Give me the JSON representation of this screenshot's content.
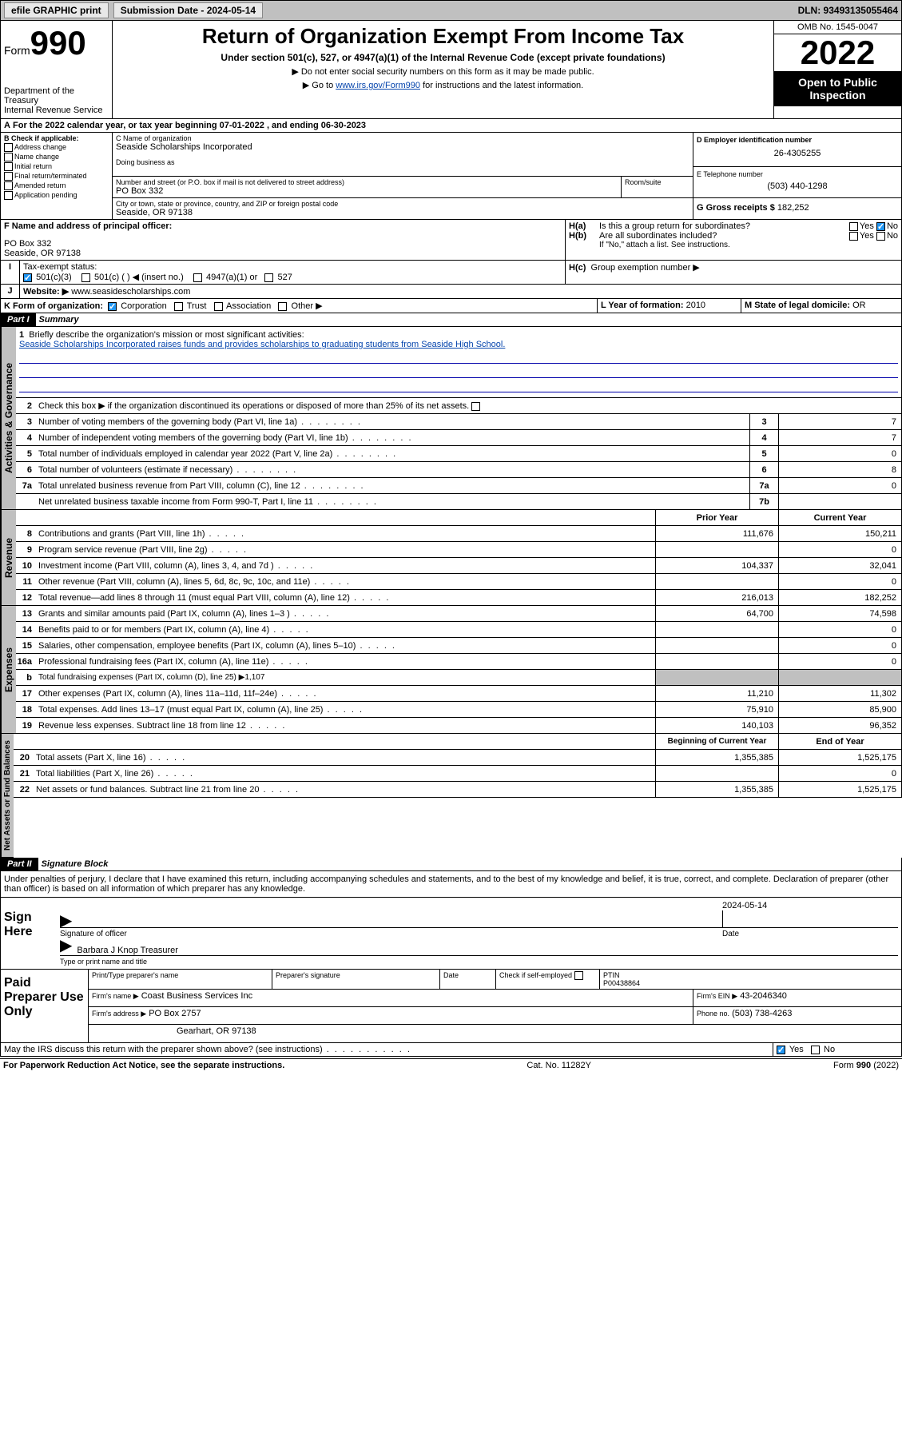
{
  "topbar": {
    "efile": "efile GRAPHIC print",
    "sub_label": "Submission Date - 2024-05-14",
    "dln": "DLN: 93493135055464"
  },
  "header": {
    "form_word": "Form",
    "form_num": "990",
    "dept": "Department of the Treasury",
    "irs": "Internal Revenue Service",
    "title": "Return of Organization Exempt From Income Tax",
    "subtitle": "Under section 501(c), 527, or 4947(a)(1) of the Internal Revenue Code (except private foundations)",
    "note1": "▶ Do not enter social security numbers on this form as it may be made public.",
    "note2_pre": "▶ Go to ",
    "note2_link": "www.irs.gov/Form990",
    "note2_post": " for instructions and the latest information.",
    "omb": "OMB No. 1545-0047",
    "year": "2022",
    "openpub": "Open to Public Inspection"
  },
  "A": {
    "text": "For the 2022 calendar year, or tax year beginning 07-01-2022    , and ending 06-30-2023"
  },
  "B": {
    "label": "B Check if applicable:",
    "opts": [
      "Address change",
      "Name change",
      "Initial return",
      "Final return/terminated",
      "Amended return",
      "Application pending"
    ]
  },
  "C": {
    "label": "C Name of organization",
    "name": "Seaside Scholarships Incorporated",
    "dba_label": "Doing business as",
    "street_label": "Number and street (or P.O. box if mail is not delivered to street address)",
    "room_label": "Room/suite",
    "street": "PO Box 332",
    "city_label": "City or town, state or province, country, and ZIP or foreign postal code",
    "city": "Seaside, OR  97138"
  },
  "D": {
    "label": "D Employer identification number",
    "val": "26-4305255"
  },
  "E": {
    "label": "E Telephone number",
    "val": "(503) 440-1298"
  },
  "G": {
    "label": "G Gross receipts $",
    "val": "182,252"
  },
  "F": {
    "label": "F Name and address of principal officer:",
    "l1": "PO Box 332",
    "l2": "Seaside, OR  97138"
  },
  "H": {
    "a": "Is this a group return for subordinates?",
    "b": "Are all subordinates included?",
    "b_note": "If \"No,\" attach a list. See instructions.",
    "c": "Group exemption number ▶",
    "yes": "Yes",
    "no": "No"
  },
  "I": {
    "label": "Tax-exempt status:",
    "o1": "501(c)(3)",
    "o2": "501(c) (  ) ◀ (insert no.)",
    "o3": "4947(a)(1) or",
    "o4": "527"
  },
  "J": {
    "label": "Website: ▶",
    "val": "www.seasidescholarships.com"
  },
  "K": {
    "label": "K Form of organization:",
    "o1": "Corporation",
    "o2": "Trust",
    "o3": "Association",
    "o4": "Other ▶"
  },
  "L": {
    "label": "L Year of formation:",
    "val": "2010"
  },
  "M": {
    "label": "M State of legal domicile:",
    "val": "OR"
  },
  "part1": {
    "hdr": "Part I",
    "title": "Summary",
    "l1": "Briefly describe the organization's mission or most significant activities:",
    "mission": "Seaside Scholarships Incorporated raises funds and provides scholarships to graduating students from Seaside High School.",
    "l2": "Check this box ▶       if the organization discontinued its operations or disposed of more than 25% of its net assets.",
    "lines_gov": [
      {
        "n": "3",
        "d": "Number of voting members of the governing body (Part VI, line 1a)",
        "b": "3",
        "v": "7"
      },
      {
        "n": "4",
        "d": "Number of independent voting members of the governing body (Part VI, line 1b)",
        "b": "4",
        "v": "7"
      },
      {
        "n": "5",
        "d": "Total number of individuals employed in calendar year 2022 (Part V, line 2a)",
        "b": "5",
        "v": "0"
      },
      {
        "n": "6",
        "d": "Total number of volunteers (estimate if necessary)",
        "b": "6",
        "v": "8"
      },
      {
        "n": "7a",
        "d": "Total unrelated business revenue from Part VIII, column (C), line 12",
        "b": "7a",
        "v": "0"
      },
      {
        "n": "",
        "d": "Net unrelated business taxable income from Form 990-T, Part I, line 11",
        "b": "7b",
        "v": ""
      }
    ],
    "col_prior": "Prior Year",
    "col_current": "Current Year",
    "rev": [
      {
        "n": "8",
        "d": "Contributions and grants (Part VIII, line 1h)",
        "p": "111,676",
        "c": "150,211"
      },
      {
        "n": "9",
        "d": "Program service revenue (Part VIII, line 2g)",
        "p": "",
        "c": "0"
      },
      {
        "n": "10",
        "d": "Investment income (Part VIII, column (A), lines 3, 4, and 7d )",
        "p": "104,337",
        "c": "32,041"
      },
      {
        "n": "11",
        "d": "Other revenue (Part VIII, column (A), lines 5, 6d, 8c, 9c, 10c, and 11e)",
        "p": "",
        "c": "0"
      },
      {
        "n": "12",
        "d": "Total revenue—add lines 8 through 11 (must equal Part VIII, column (A), line 12)",
        "p": "216,013",
        "c": "182,252"
      }
    ],
    "exp": [
      {
        "n": "13",
        "d": "Grants and similar amounts paid (Part IX, column (A), lines 1–3 )",
        "p": "64,700",
        "c": "74,598"
      },
      {
        "n": "14",
        "d": "Benefits paid to or for members (Part IX, column (A), line 4)",
        "p": "",
        "c": "0"
      },
      {
        "n": "15",
        "d": "Salaries, other compensation, employee benefits (Part IX, column (A), lines 5–10)",
        "p": "",
        "c": "0"
      },
      {
        "n": "16a",
        "d": "Professional fundraising fees (Part IX, column (A), line 11e)",
        "p": "",
        "c": "0"
      },
      {
        "n": "b",
        "d": "Total fundraising expenses (Part IX, column (D), line 25) ▶1,107",
        "grey": true
      },
      {
        "n": "17",
        "d": "Other expenses (Part IX, column (A), lines 11a–11d, 11f–24e)",
        "p": "11,210",
        "c": "11,302"
      },
      {
        "n": "18",
        "d": "Total expenses. Add lines 13–17 (must equal Part IX, column (A), line 25)",
        "p": "75,910",
        "c": "85,900"
      },
      {
        "n": "19",
        "d": "Revenue less expenses. Subtract line 18 from line 12",
        "p": "140,103",
        "c": "96,352"
      }
    ],
    "col_begin": "Beginning of Current Year",
    "col_end": "End of Year",
    "net": [
      {
        "n": "20",
        "d": "Total assets (Part X, line 16)",
        "p": "1,355,385",
        "c": "1,525,175"
      },
      {
        "n": "21",
        "d": "Total liabilities (Part X, line 26)",
        "p": "",
        "c": "0"
      },
      {
        "n": "22",
        "d": "Net assets or fund balances. Subtract line 21 from line 20",
        "p": "1,355,385",
        "c": "1,525,175"
      }
    ],
    "tab_gov": "Activities & Governance",
    "tab_rev": "Revenue",
    "tab_exp": "Expenses",
    "tab_net": "Net Assets or Fund Balances"
  },
  "part2": {
    "hdr": "Part II",
    "title": "Signature Block",
    "decl": "Under penalties of perjury, I declare that I have examined this return, including accompanying schedules and statements, and to the best of my knowledge and belief, it is true, correct, and complete. Declaration of preparer (other than officer) is based on all information of which preparer has any knowledge.",
    "sign_here": "Sign Here",
    "sig_officer": "Signature of officer",
    "date": "Date",
    "sig_date": "2024-05-14",
    "name_title": "Barbara J Knop Treasurer",
    "type_name": "Type or print name and title",
    "paid": "Paid Preparer Use Only",
    "pt_name": "Print/Type preparer's name",
    "pt_sig": "Preparer's signature",
    "pt_date": "Date",
    "check_self": "Check        if self-employed",
    "ptin_l": "PTIN",
    "ptin": "P00438864",
    "firm_name_l": "Firm's name    ▶",
    "firm_name": "Coast Business Services Inc",
    "firm_ein_l": "Firm's EIN ▶",
    "firm_ein": "43-2046340",
    "firm_addr_l": "Firm's address ▶",
    "firm_addr1": "PO Box 2757",
    "firm_addr2": "Gearhart, OR  97138",
    "phone_l": "Phone no.",
    "phone": "(503) 738-4263",
    "may_irs": "May the IRS discuss this return with the preparer shown above? (see instructions)"
  },
  "footer": {
    "left": "For Paperwork Reduction Act Notice, see the separate instructions.",
    "mid": "Cat. No. 11282Y",
    "right": "Form 990 (2022)"
  },
  "colors": {
    "link": "#0645ad",
    "grey_bg": "#c0c0c0",
    "check_blue": "#2196f3",
    "rule_blue": "#0000aa"
  }
}
